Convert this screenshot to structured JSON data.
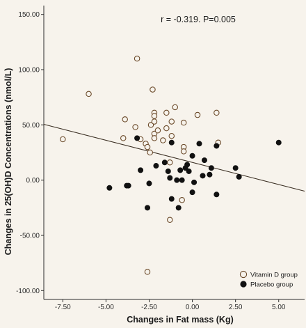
{
  "chart_data": {
    "type": "scatter",
    "xlabel": "Changes in Fat mass (Kg)",
    "ylabel": "Changes in 25(OH)D Concentrations (nmol/L)",
    "annotation": "r = -0.319. P=0.005",
    "xlim": [
      -8.6,
      6.5
    ],
    "ylim": [
      -108,
      158
    ],
    "xticks": [
      "-7.50",
      "-5.00",
      "-2.50",
      "0.00",
      "2.50",
      "5.00"
    ],
    "xtick_values": [
      -7.5,
      -5,
      -2.5,
      0,
      2.5,
      5
    ],
    "yticks": [
      "150.00",
      "100.00",
      "50.00",
      "0.00",
      "-50.00",
      "-100.00"
    ],
    "ytick_values": [
      150,
      100,
      50,
      0,
      -50,
      -100
    ],
    "grid": false,
    "legend_position": "bottom-right",
    "fit_line": {
      "x": [
        -8.6,
        6.5
      ],
      "y": [
        50.5,
        -10
      ]
    },
    "series": [
      {
        "name": "Vitamin D group",
        "marker": "open-circle",
        "color": "#6b4a2a",
        "points": [
          [
            -7.5,
            37
          ],
          [
            -6.0,
            78
          ],
          [
            -3.2,
            110
          ],
          [
            -3.3,
            48
          ],
          [
            -3.9,
            55
          ],
          [
            -4.0,
            38
          ],
          [
            -3.0,
            37
          ],
          [
            -2.7,
            33
          ],
          [
            -2.6,
            30
          ],
          [
            -2.45,
            25
          ],
          [
            -2.4,
            50
          ],
          [
            -2.3,
            82
          ],
          [
            -2.2,
            61
          ],
          [
            -2.2,
            58
          ],
          [
            -2.2,
            53
          ],
          [
            -2.2,
            42
          ],
          [
            -2.2,
            38
          ],
          [
            -2.0,
            45
          ],
          [
            -1.5,
            61
          ],
          [
            -1.5,
            47
          ],
          [
            -1.2,
            53
          ],
          [
            -1.2,
            40
          ],
          [
            -1.7,
            36
          ],
          [
            -1.0,
            66
          ],
          [
            -1.3,
            16
          ],
          [
            -0.5,
            52
          ],
          [
            -0.5,
            30
          ],
          [
            -0.5,
            26
          ],
          [
            0.3,
            59
          ],
          [
            1.4,
            61
          ],
          [
            1.5,
            34
          ],
          [
            -1.3,
            -36
          ],
          [
            -0.6,
            -18
          ],
          [
            -2.6,
            -83
          ]
        ]
      },
      {
        "name": "Placebo group",
        "marker": "filled-circle",
        "color": "#111111",
        "points": [
          [
            -4.8,
            -7
          ],
          [
            -3.8,
            -5
          ],
          [
            -3.7,
            -5
          ],
          [
            -3.2,
            38
          ],
          [
            -3.0,
            9
          ],
          [
            -2.5,
            -3
          ],
          [
            -2.6,
            -25
          ],
          [
            -2.1,
            13
          ],
          [
            -1.6,
            16
          ],
          [
            -1.4,
            8
          ],
          [
            -1.3,
            2
          ],
          [
            -1.2,
            34
          ],
          [
            -1.2,
            -17
          ],
          [
            -0.7,
            9
          ],
          [
            -0.9,
            0
          ],
          [
            -0.8,
            -25
          ],
          [
            -0.6,
            0
          ],
          [
            -0.4,
            11
          ],
          [
            -0.3,
            14
          ],
          [
            -0.2,
            8
          ],
          [
            0.0,
            22
          ],
          [
            0.0,
            -11
          ],
          [
            0.1,
            -2
          ],
          [
            0.4,
            33
          ],
          [
            0.6,
            4
          ],
          [
            0.7,
            18
          ],
          [
            1.0,
            5
          ],
          [
            1.1,
            11
          ],
          [
            1.4,
            -13
          ],
          [
            1.4,
            31
          ],
          [
            2.5,
            11
          ],
          [
            2.7,
            3
          ],
          [
            5.0,
            34
          ]
        ]
      }
    ]
  }
}
